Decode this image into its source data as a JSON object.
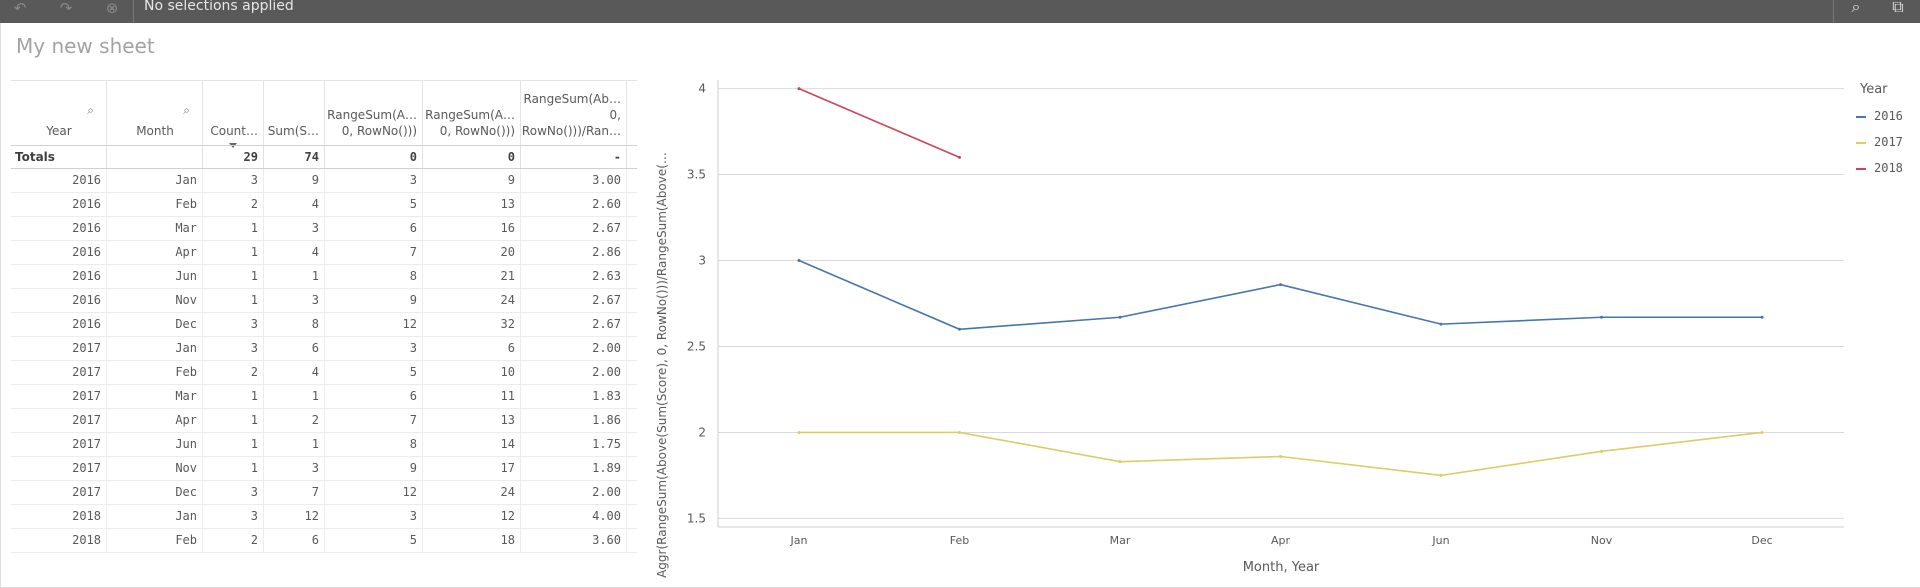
{
  "toolbar": {
    "selections_text": "No selections applied",
    "buttons": [
      "back-icon",
      "forward-icon",
      "clear-selections-icon"
    ],
    "right_buttons": [
      "search-icon",
      "selections-tool-icon"
    ]
  },
  "sheet": {
    "title": "My new sheet"
  },
  "table": {
    "headers": [
      "Year",
      "Month",
      "Count…",
      "Sum(S…",
      "RangeSum(A…\n0, RowNo()))",
      "RangeSum(A…\n0, RowNo()))",
      "RangeSum(Ab…\n0,\nRowNo()))/Ran…"
    ],
    "totals": [
      "Totals",
      "",
      "29",
      "74",
      "0",
      "0",
      "-"
    ],
    "rows": [
      [
        "2016",
        "Jan",
        "3",
        "9",
        "3",
        "9",
        "3.00"
      ],
      [
        "2016",
        "Feb",
        "2",
        "4",
        "5",
        "13",
        "2.60"
      ],
      [
        "2016",
        "Mar",
        "1",
        "3",
        "6",
        "16",
        "2.67"
      ],
      [
        "2016",
        "Apr",
        "1",
        "4",
        "7",
        "20",
        "2.86"
      ],
      [
        "2016",
        "Jun",
        "1",
        "1",
        "8",
        "21",
        "2.63"
      ],
      [
        "2016",
        "Nov",
        "1",
        "3",
        "9",
        "24",
        "2.67"
      ],
      [
        "2016",
        "Dec",
        "3",
        "8",
        "12",
        "32",
        "2.67"
      ],
      [
        "2017",
        "Jan",
        "3",
        "6",
        "3",
        "6",
        "2.00"
      ],
      [
        "2017",
        "Feb",
        "2",
        "4",
        "5",
        "10",
        "2.00"
      ],
      [
        "2017",
        "Mar",
        "1",
        "1",
        "6",
        "11",
        "1.83"
      ],
      [
        "2017",
        "Apr",
        "1",
        "2",
        "7",
        "13",
        "1.86"
      ],
      [
        "2017",
        "Jun",
        "1",
        "1",
        "8",
        "14",
        "1.75"
      ],
      [
        "2017",
        "Nov",
        "1",
        "3",
        "9",
        "17",
        "1.89"
      ],
      [
        "2017",
        "Dec",
        "3",
        "7",
        "12",
        "24",
        "2.00"
      ],
      [
        "2018",
        "Jan",
        "3",
        "12",
        "3",
        "12",
        "4.00"
      ],
      [
        "2018",
        "Feb",
        "2",
        "6",
        "5",
        "18",
        "3.60"
      ]
    ]
  },
  "chart_data": {
    "type": "line",
    "categories": [
      "Jan",
      "Feb",
      "Mar",
      "Apr",
      "Jun",
      "Nov",
      "Dec"
    ],
    "series": [
      {
        "name": "2016",
        "color": "#4477aa",
        "values": [
          3.0,
          2.6,
          2.67,
          2.86,
          2.63,
          2.67,
          2.67
        ]
      },
      {
        "name": "2017",
        "color": "#ddcc66",
        "values": [
          2.0,
          2.0,
          1.83,
          1.86,
          1.75,
          1.89,
          2.0
        ]
      },
      {
        "name": "2018",
        "color": "#cc4455",
        "values": [
          4.0,
          3.6,
          null,
          null,
          null,
          null,
          null
        ]
      }
    ],
    "xlabel": "Month, Year",
    "ylabel": "Aggr(RangeSum(Above(Sum(Score), 0, RowNo()))/RangeSum(Above(…",
    "yticks": [
      "4",
      "3.5",
      "3",
      "2.5",
      "2",
      "1.5"
    ],
    "ylim": [
      1.45,
      4.05
    ],
    "legend_title": "Year",
    "legend_position": "right",
    "grid": true
  }
}
